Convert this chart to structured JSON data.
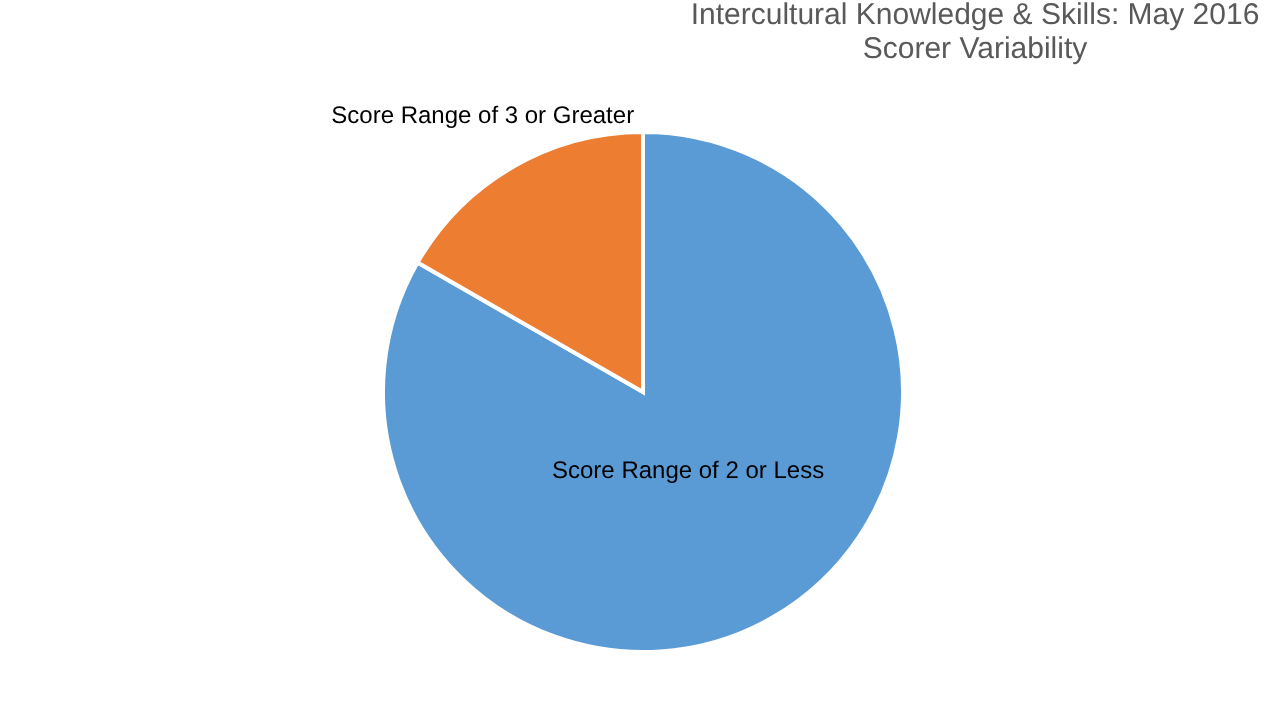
{
  "chart_data": {
    "type": "pie",
    "title": "Intercultural Knowledge & Skills: May 2016",
    "subtitle": "Scorer Variability",
    "categories": [
      "Score Range of 2 or Less",
      "Score Range of 3 or Greater"
    ],
    "values": [
      83.3,
      16.7
    ],
    "colors": [
      "#5b9bd5",
      "#ed7d31"
    ],
    "legend": false
  }
}
